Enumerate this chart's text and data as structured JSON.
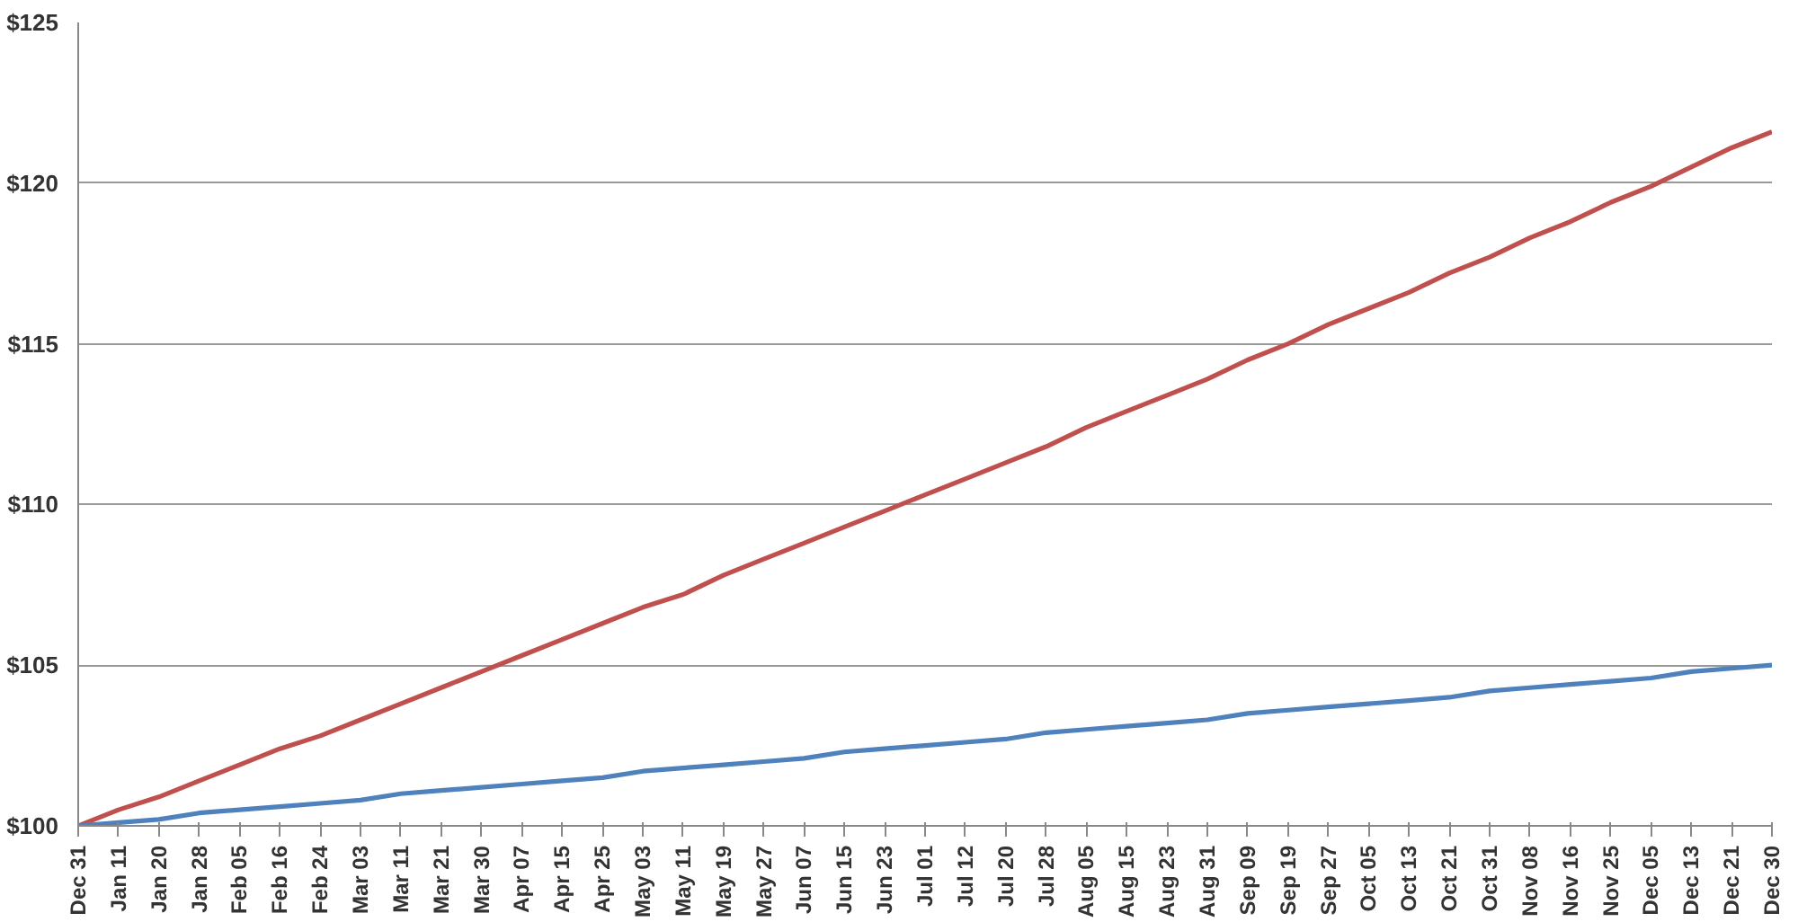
{
  "chart_data": {
    "type": "line",
    "categories": [
      "Dec 31",
      "Jan 11",
      "Jan 20",
      "Jan 28",
      "Feb 05",
      "Feb 16",
      "Feb 24",
      "Mar 03",
      "Mar 11",
      "Mar 21",
      "Mar 30",
      "Apr 07",
      "Apr 15",
      "Apr 25",
      "May 03",
      "May 11",
      "May 19",
      "May 27",
      "Jun 07",
      "Jun 15",
      "Jun 23",
      "Jul 01",
      "Jul 12",
      "Jul 20",
      "Jul 28",
      "Aug 05",
      "Aug 15",
      "Aug 23",
      "Aug 31",
      "Sep 09",
      "Sep 19",
      "Sep 27",
      "Oct 05",
      "Oct 13",
      "Oct 21",
      "Oct 31",
      "Nov 08",
      "Nov 16",
      "Nov 25",
      "Dec 05",
      "Dec 13",
      "Dec 21",
      "Dec 30"
    ],
    "series": [
      {
        "color": "#c0504d",
        "values": [
          100.0,
          100.5,
          100.9,
          101.4,
          101.9,
          102.4,
          102.8,
          103.3,
          103.8,
          104.3,
          104.8,
          105.3,
          105.8,
          106.3,
          106.8,
          107.2,
          107.8,
          108.3,
          108.8,
          109.3,
          109.8,
          110.3,
          110.8,
          111.3,
          111.8,
          112.4,
          112.9,
          113.4,
          113.9,
          114.5,
          115.0,
          115.6,
          116.1,
          116.6,
          117.2,
          117.7,
          118.3,
          118.8,
          119.4,
          119.9,
          120.5,
          121.1,
          121.6
        ]
      },
      {
        "color": "#4f81bd",
        "values": [
          100.0,
          100.1,
          100.2,
          100.4,
          100.5,
          100.6,
          100.7,
          100.8,
          101.0,
          101.1,
          101.2,
          101.3,
          101.4,
          101.5,
          101.7,
          101.8,
          101.9,
          102.0,
          102.1,
          102.3,
          102.4,
          102.5,
          102.6,
          102.7,
          102.9,
          103.0,
          103.1,
          103.2,
          103.3,
          103.5,
          103.6,
          103.7,
          103.8,
          103.9,
          104.0,
          104.2,
          104.3,
          104.4,
          104.5,
          104.6,
          104.8,
          104.9,
          105.0
        ]
      }
    ],
    "ylim": [
      100,
      125
    ],
    "yticks": [
      {
        "value": 100,
        "label": "$100"
      },
      {
        "value": 105,
        "label": "$105"
      },
      {
        "value": 110,
        "label": "$110"
      },
      {
        "value": 115,
        "label": "$115"
      },
      {
        "value": 120,
        "label": "$120"
      },
      {
        "value": 125,
        "label": "$125"
      }
    ],
    "grid": "y",
    "marker": "none",
    "line_style": "solid"
  }
}
